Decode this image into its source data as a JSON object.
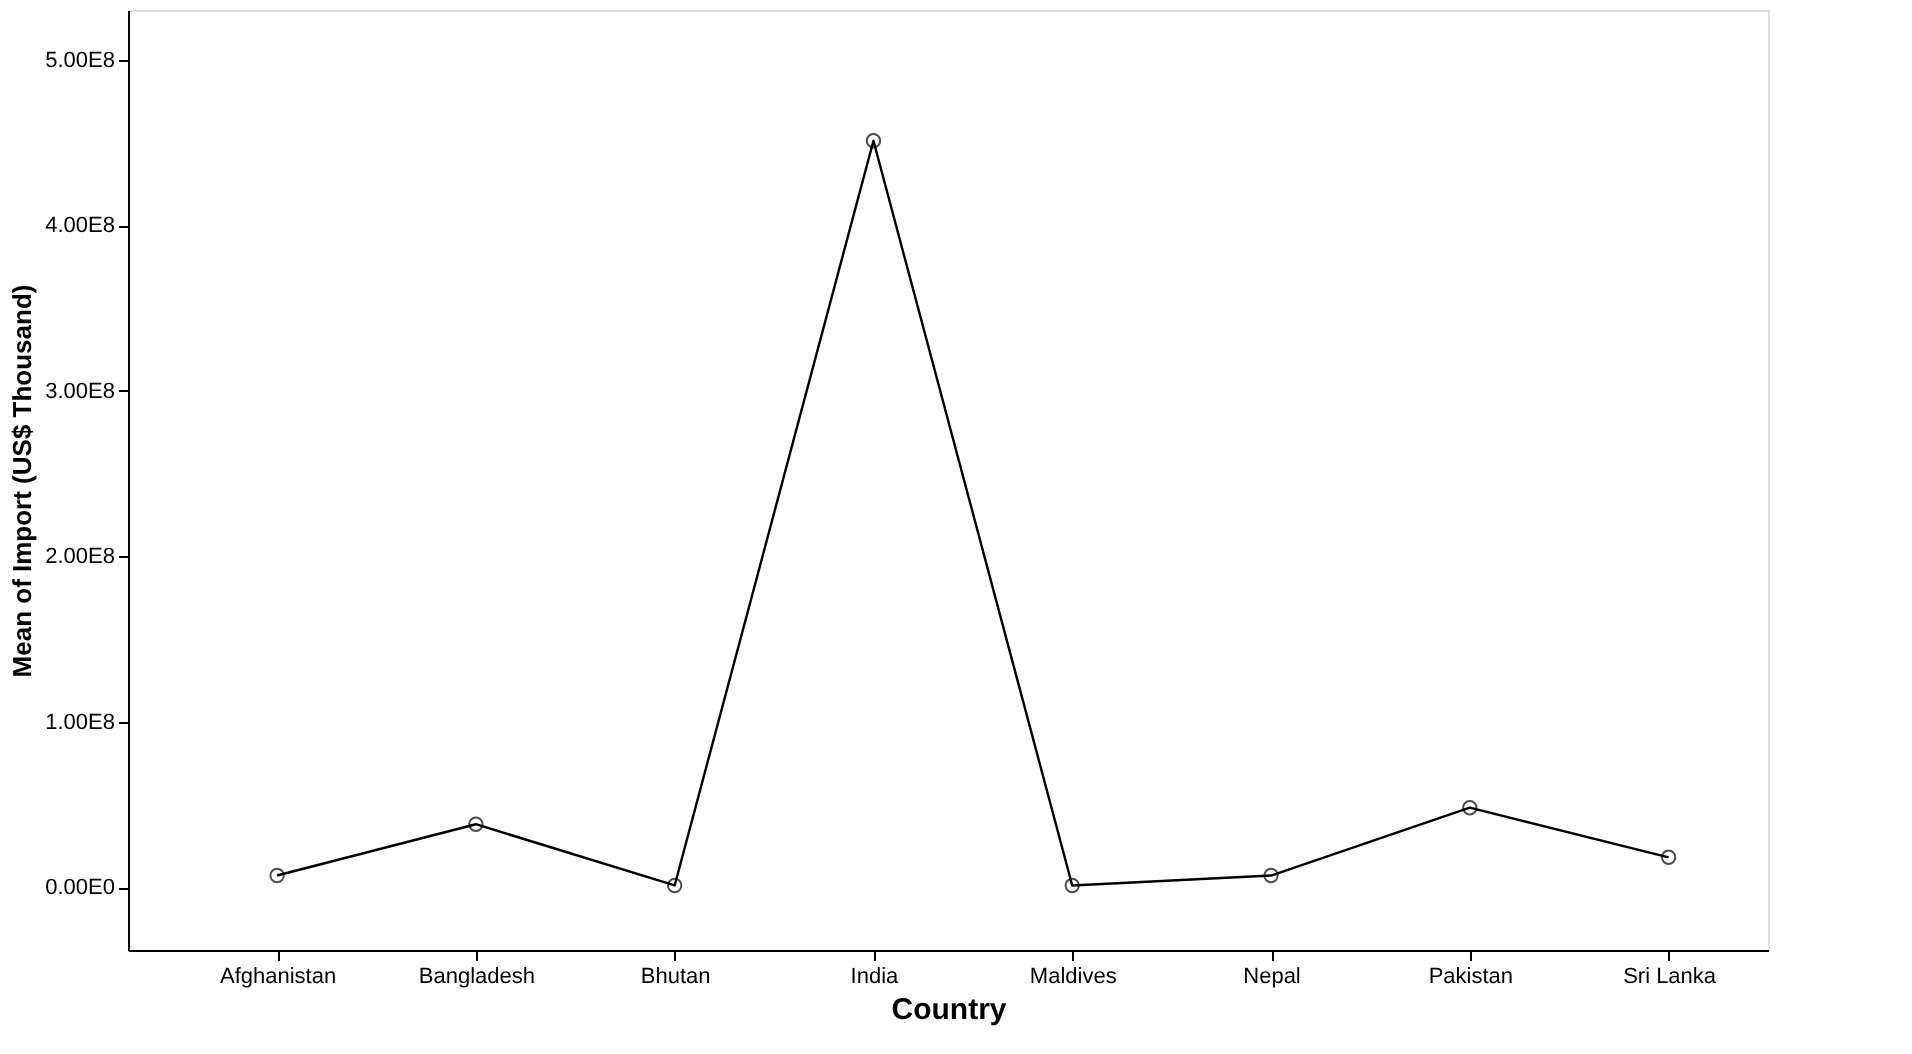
{
  "chart_data": {
    "type": "line",
    "xlabel": "Country",
    "ylabel": "Mean of Import (US$ Thousand)",
    "categories": [
      "Afghanistan",
      "Bangladesh",
      "Bhutan",
      "India",
      "Maldives",
      "Nepal",
      "Pakistan",
      "Sri Lanka"
    ],
    "series": [
      {
        "color": "#000000",
        "values": [
          7000000,
          38000000,
          1000000,
          451000000,
          1000000,
          7000000,
          48000000,
          18000000
        ]
      }
    ],
    "ylim": [
      -38000000,
      530000000
    ],
    "yticks": [
      {
        "value": 0,
        "label": "0.00E0"
      },
      {
        "value": 100000000,
        "label": "1.00E8"
      },
      {
        "value": 200000000,
        "label": "2.00E8"
      },
      {
        "value": 300000000,
        "label": "3.00E8"
      },
      {
        "value": 400000000,
        "label": "4.00E8"
      },
      {
        "value": 500000000,
        "label": "5.00E8"
      }
    ],
    "marker": "circle",
    "grid": false,
    "legend": false
  }
}
